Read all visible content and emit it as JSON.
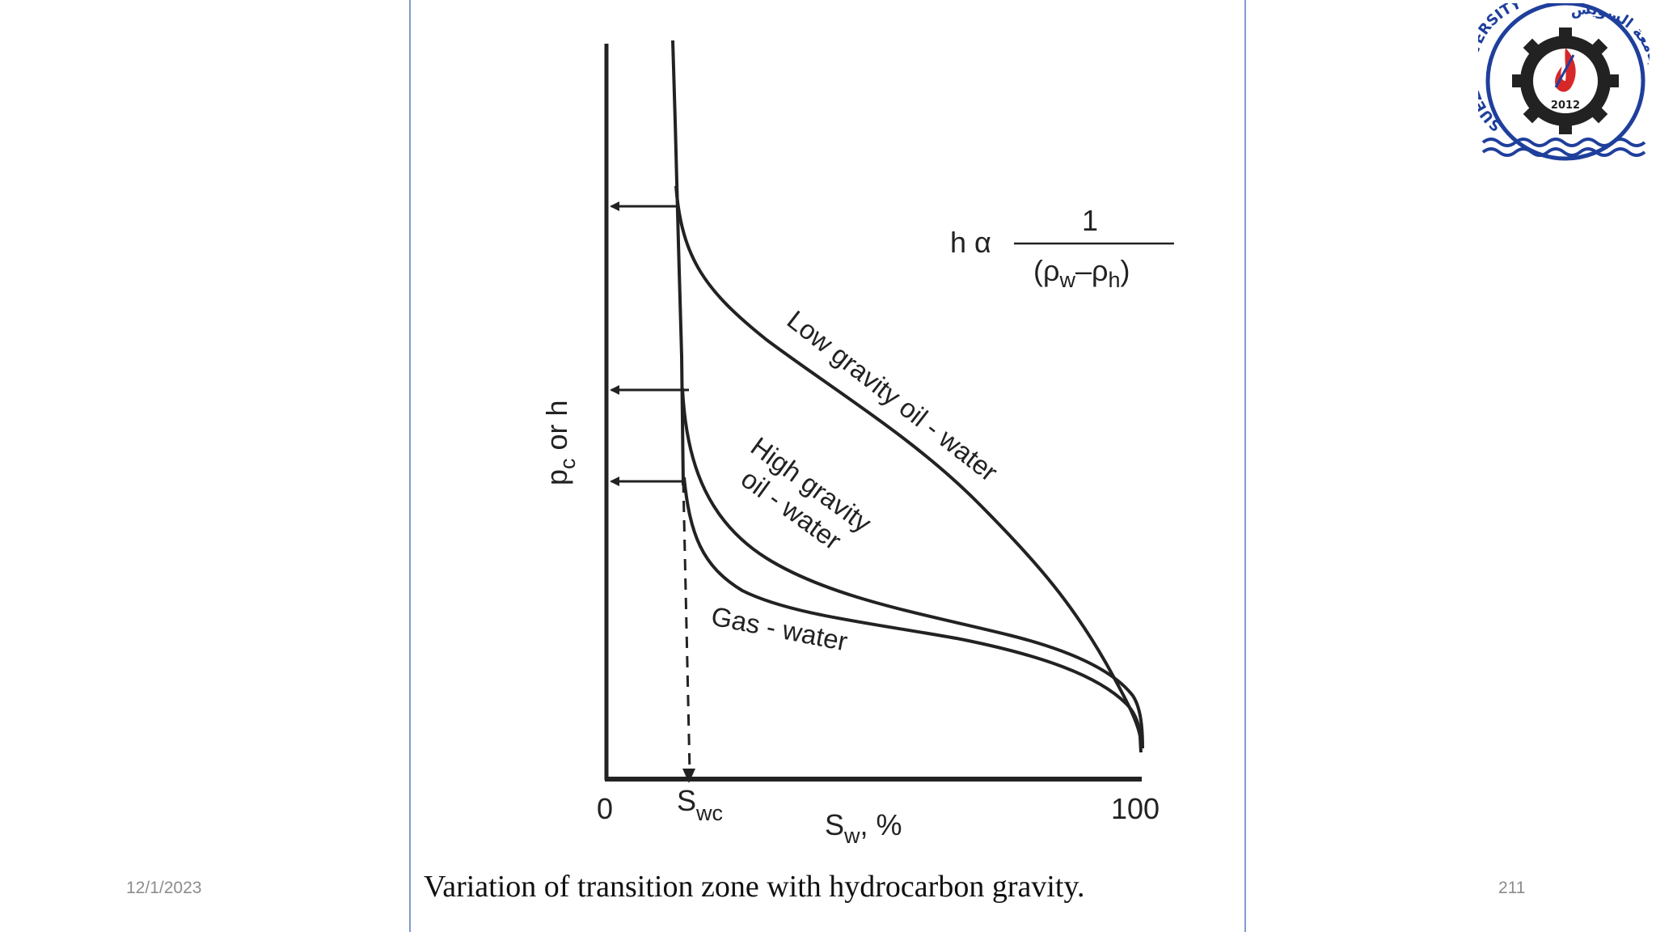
{
  "slide": {
    "date": "12/1/2023",
    "page_number": "211"
  },
  "logo": {
    "top_text": "SUEZ UNIVERSITY",
    "arabic_text": "جامعة السويس",
    "year": "2012"
  },
  "figure": {
    "caption": "Variation of transition zone with hydrocarbon gravity.",
    "y_axis_label": "p",
    "y_axis_label_sub": "c",
    "y_axis_label_rest": " or h",
    "x_axis_label": "S",
    "x_axis_label_sub": "w",
    "x_axis_label_rest": ", %",
    "x_tick_0": "0",
    "x_tick_swc": "S",
    "x_tick_swc_sub": "wc",
    "x_tick_100": "100",
    "formula": {
      "lhs": "h α",
      "numerator": "1",
      "rho": "ρ",
      "w": "w",
      "h": "h",
      "open": "(",
      "minus": "–",
      "close": ")"
    },
    "curves": [
      {
        "name": "Low gravity oil - water",
        "label": "Low gravity oil - water"
      },
      {
        "name": "High gravity oil - water",
        "label_line1": "High gravity",
        "label_line2": "oil - water"
      },
      {
        "name": "Gas - water",
        "label": "Gas - water"
      }
    ],
    "colors": {
      "line": "#222222",
      "panel_border": "#7f9bd0",
      "footer_text": "#8c8c8c",
      "logo_blue": "#1f3f9c",
      "logo_red": "#d62828"
    }
  }
}
